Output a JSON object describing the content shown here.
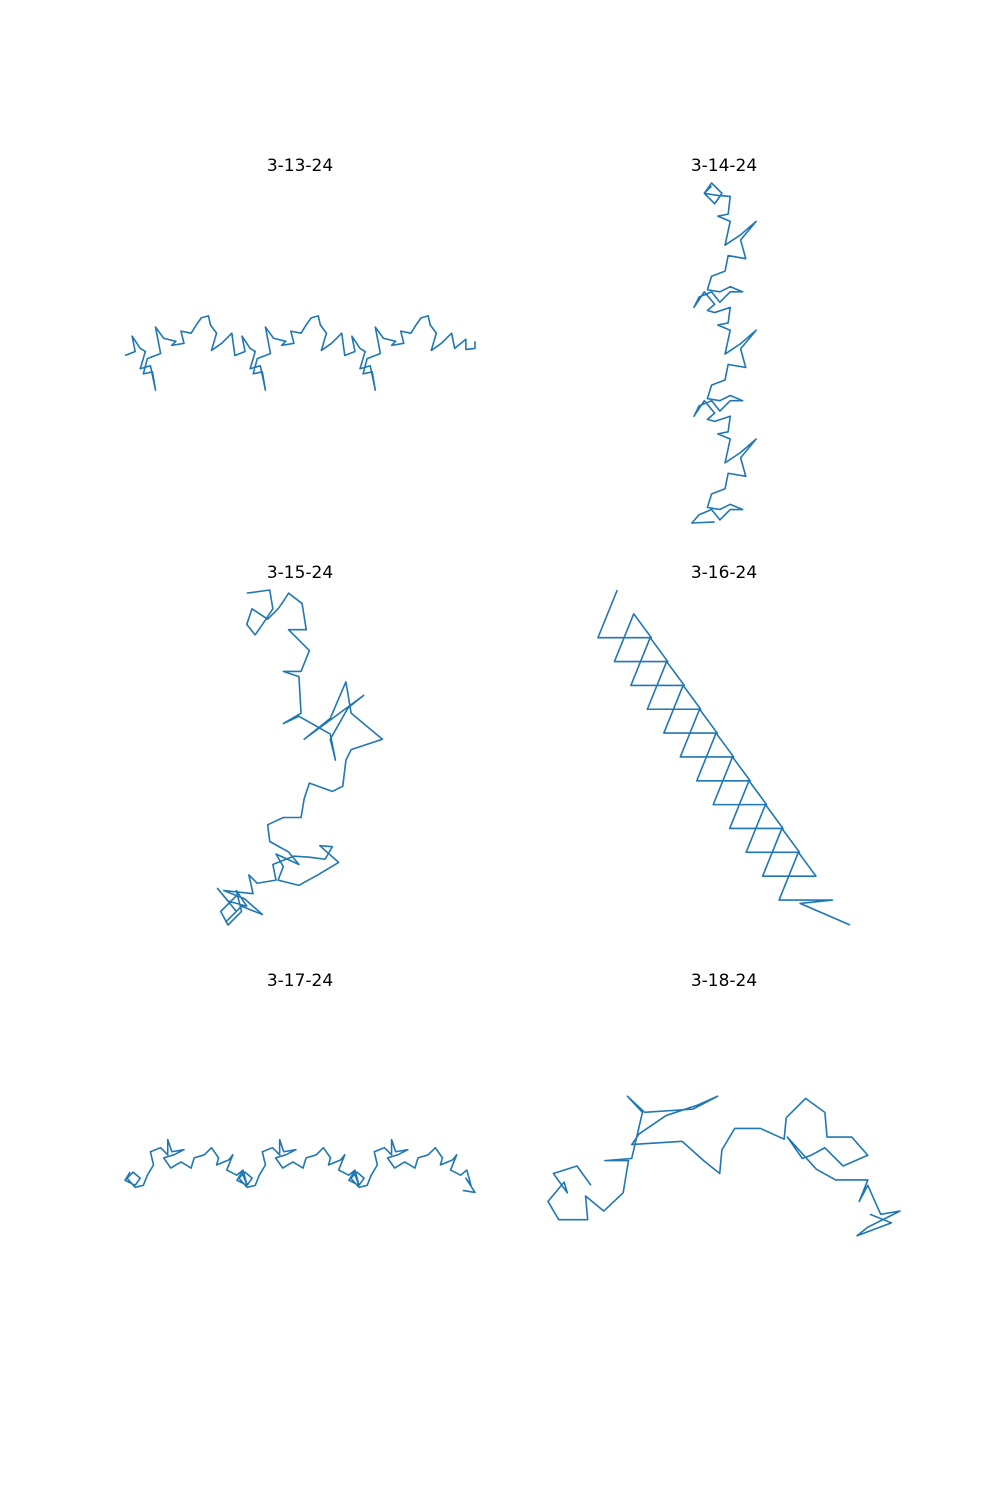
{
  "chart_data": [
    {
      "type": "line",
      "title": "3-13-24",
      "color": "#1f77b4",
      "x": [
        130,
        140,
        137,
        145,
        150,
        145,
        155,
        160,
        157,
        148,
        152,
        165,
        160,
        168,
        180,
        176,
        188,
        185,
        195,
        200,
        205,
        212,
        214,
        220,
        215,
        225,
        235,
        238,
        248,
        245,
        253,
        258,
        253,
        263,
        268,
        265,
        256,
        260,
        273,
        268,
        276,
        288,
        284,
        296,
        293,
        303,
        308,
        313,
        320,
        322,
        328,
        323,
        333,
        343,
        346,
        356,
        353,
        361,
        366,
        361,
        371,
        376,
        373,
        364,
        368,
        381,
        376,
        384,
        396,
        392,
        404,
        401,
        411,
        416,
        421,
        428,
        430,
        436,
        431,
        441,
        451,
        454,
        465,
        465,
        474,
        474
      ],
      "y": [
        352,
        348,
        333,
        345,
        348,
        365,
        362,
        386,
        368,
        370,
        355,
        350,
        324,
        335,
        338,
        342,
        340,
        328,
        330,
        322,
        315,
        313,
        322,
        330,
        347,
        340,
        330,
        352,
        348,
        333,
        345,
        348,
        365,
        362,
        386,
        368,
        370,
        355,
        350,
        324,
        335,
        338,
        342,
        340,
        328,
        330,
        322,
        315,
        313,
        322,
        330,
        347,
        340,
        330,
        352,
        348,
        333,
        345,
        348,
        365,
        362,
        386,
        368,
        370,
        355,
        350,
        324,
        335,
        338,
        342,
        340,
        328,
        330,
        322,
        315,
        313,
        322,
        330,
        347,
        340,
        330,
        345,
        336,
        346,
        345,
        338
      ]
    },
    {
      "type": "line",
      "title": "3-14-24",
      "color": "#1f77b4",
      "x": [
        712,
        705,
        715,
        722,
        712,
        705,
        718,
        730,
        728,
        718,
        730,
        725,
        740,
        755,
        740,
        745,
        728,
        725,
        712,
        708,
        720,
        730,
        742,
        730,
        720,
        712,
        700,
        695,
        705,
        715,
        708,
        715,
        730,
        728,
        718,
        730,
        725,
        740,
        755,
        740,
        745,
        728,
        725,
        712,
        708,
        720,
        730,
        742,
        730,
        720,
        712,
        700,
        695,
        705,
        715,
        708,
        715,
        730,
        728,
        718,
        730,
        725,
        740,
        755,
        740,
        745,
        728,
        725,
        712,
        708,
        720,
        730,
        742,
        730,
        720,
        712,
        700,
        693,
        715
      ],
      "y": [
        188,
        195,
        205,
        195,
        185,
        195,
        197,
        198,
        215,
        217,
        222,
        245,
        235,
        222,
        240,
        258,
        255,
        270,
        275,
        288,
        290,
        285,
        290,
        290,
        300,
        290,
        295,
        305,
        290,
        302,
        308,
        310,
        305,
        320,
        322,
        327,
        350,
        340,
        327,
        345,
        363,
        360,
        375,
        380,
        393,
        395,
        390,
        395,
        395,
        405,
        395,
        400,
        410,
        395,
        407,
        413,
        415,
        410,
        425,
        427,
        432,
        455,
        445,
        432,
        450,
        468,
        465,
        480,
        485,
        498,
        500,
        495,
        500,
        500,
        510,
        500,
        505,
        513,
        512
      ]
    },
    {
      "type": "line",
      "title": "3-15-24",
      "color": "#1f77b4",
      "x": [
        250,
        272,
        275,
        265,
        258,
        250,
        255,
        270,
        280,
        285,
        290,
        303,
        307,
        290,
        310,
        302,
        285,
        300,
        302,
        285,
        300,
        330,
        335,
        330,
        347,
        362,
        305,
        330,
        345,
        350,
        380,
        350,
        345,
        342,
        332,
        310,
        305,
        302,
        285,
        270,
        272,
        290,
        300,
        278,
        285,
        280,
        300,
        318,
        338,
        320,
        332,
        325,
        310,
        295,
        275,
        278,
        260,
        252,
        256,
        228,
        248,
        265,
        245,
        230,
        240,
        222,
        232,
        250,
        240,
        245,
        232,
        225,
        240
      ],
      "y": [
        600,
        597,
        615,
        630,
        640,
        630,
        615,
        625,
        615,
        608,
        600,
        610,
        635,
        635,
        655,
        675,
        675,
        680,
        715,
        725,
        718,
        735,
        760,
        740,
        710,
        698,
        740,
        720,
        685,
        715,
        740,
        750,
        760,
        785,
        790,
        782,
        797,
        815,
        815,
        822,
        838,
        848,
        860,
        850,
        862,
        875,
        880,
        870,
        858,
        842,
        843,
        855,
        853,
        852,
        860,
        875,
        878,
        870,
        888,
        885,
        893,
        908,
        900,
        915,
        905,
        883,
        895,
        900,
        885,
        905,
        918,
        905,
        890
      ]
    },
    {
      "type": "line",
      "title": "3-16-24",
      "color": "#1f77b4",
      "x": [
        630,
        613,
        660,
        644.5,
        627.5,
        674.5,
        659,
        642,
        689,
        673.5,
        656.5,
        703.5,
        688,
        671,
        718,
        702.5,
        685.5,
        732.5,
        717,
        700,
        747,
        731.5,
        714.5,
        761.5,
        746,
        729,
        776,
        760.5,
        743.5,
        790.5,
        775,
        758,
        805,
        789.5,
        772.5,
        819.5,
        791,
        835
      ],
      "y": [
        610,
        652,
        652,
        631,
        673,
        673,
        652,
        694,
        694,
        673,
        715,
        715,
        694,
        736,
        736,
        715,
        757,
        757,
        736,
        778,
        778,
        757,
        799,
        799,
        778,
        820,
        820,
        799,
        841,
        841,
        820,
        862,
        862,
        841,
        883,
        883,
        886,
        905
      ]
    },
    {
      "type": "line",
      "title": "3-17-24",
      "color": "#1f77b4",
      "x": [
        135,
        130,
        140,
        145,
        138,
        132,
        140,
        148,
        152,
        158,
        155,
        165,
        172,
        172,
        176,
        188,
        178,
        168,
        175,
        185,
        195,
        198,
        208,
        215,
        222,
        220,
        232,
        236,
        230,
        240,
        246,
        250,
        245,
        240,
        250,
        255,
        248,
        242,
        250,
        258,
        262,
        268,
        265,
        275,
        282,
        282,
        286,
        298,
        288,
        278,
        285,
        295,
        305,
        308,
        318,
        325,
        332,
        330,
        342,
        346,
        340,
        350,
        356,
        360,
        355,
        350,
        360,
        365,
        358,
        352,
        360,
        368,
        372,
        378,
        375,
        385,
        392,
        392,
        396,
        408,
        398,
        388,
        395,
        405,
        415,
        418,
        428,
        435,
        442,
        440,
        452,
        456,
        450,
        460,
        466,
        470,
        465,
        474,
        462
      ],
      "y": [
        1172,
        1180,
        1185,
        1178,
        1172,
        1178,
        1187,
        1185,
        1175,
        1165,
        1152,
        1148,
        1155,
        1140,
        1152,
        1150,
        1155,
        1158,
        1168,
        1162,
        1168,
        1158,
        1155,
        1148,
        1158,
        1165,
        1160,
        1155,
        1170,
        1175,
        1170,
        1185,
        1172,
        1180,
        1185,
        1178,
        1172,
        1178,
        1187,
        1185,
        1175,
        1165,
        1152,
        1148,
        1155,
        1140,
        1152,
        1150,
        1155,
        1158,
        1168,
        1162,
        1168,
        1158,
        1155,
        1148,
        1158,
        1165,
        1160,
        1155,
        1170,
        1175,
        1170,
        1185,
        1172,
        1180,
        1185,
        1178,
        1172,
        1178,
        1187,
        1185,
        1175,
        1165,
        1152,
        1148,
        1155,
        1140,
        1152,
        1150,
        1155,
        1158,
        1168,
        1162,
        1168,
        1158,
        1155,
        1148,
        1158,
        1165,
        1160,
        1155,
        1170,
        1175,
        1170,
        1185,
        1178,
        1192,
        1190
      ]
    },
    {
      "type": "line",
      "title": "3-18-24",
      "color": "#1f77b4",
      "x": [
        600,
        587,
        565,
        578,
        575,
        565,
        560,
        570,
        597,
        595,
        612,
        630,
        635,
        613,
        638,
        648,
        634,
        650,
        695,
        718,
        700,
        670,
        645,
        638,
        685,
        705,
        720,
        722,
        734,
        758,
        780,
        782,
        800,
        818,
        820,
        843,
        858,
        835,
        818,
        805,
        797,
        783,
        810,
        828,
        858,
        850,
        858,
        870,
        888,
        858,
        848,
        880,
        860
      ],
      "y": [
        1183,
        1165,
        1172,
        1190,
        1180,
        1192,
        1198,
        1215,
        1215,
        1193,
        1207,
        1190,
        1160,
        1160,
        1158,
        1115,
        1100,
        1115,
        1112,
        1100,
        1108,
        1118,
        1135,
        1145,
        1142,
        1160,
        1172,
        1150,
        1130,
        1130,
        1140,
        1120,
        1102,
        1115,
        1138,
        1138,
        1155,
        1165,
        1148,
        1155,
        1158,
        1138,
        1168,
        1178,
        1178,
        1198,
        1183,
        1210,
        1207,
        1222,
        1230,
        1218,
        1210
      ]
    }
  ]
}
